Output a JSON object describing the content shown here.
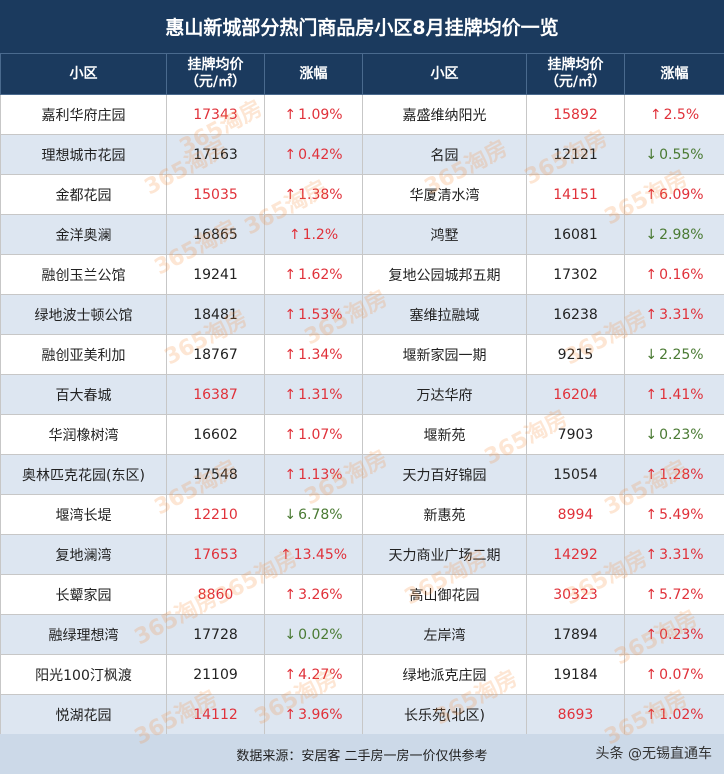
{
  "title": "惠山新城部分热门商品房小区8月挂牌均价一览",
  "headers": {
    "name": "小区",
    "price_line1": "挂牌均价",
    "price_line2": "（元/㎡）",
    "change": "涨幅"
  },
  "arrows": {
    "up": "↑",
    "down": "↓"
  },
  "left": [
    {
      "name": "嘉利华府庄园",
      "price": "17343",
      "price_up": true,
      "dir": "up",
      "pct": "1.09%"
    },
    {
      "name": "理想城市花园",
      "price": "17163",
      "price_up": false,
      "dir": "up",
      "pct": "0.42%"
    },
    {
      "name": "金都花园",
      "price": "15035",
      "price_up": true,
      "dir": "up",
      "pct": "1.38%"
    },
    {
      "name": "金洋奥澜",
      "price": "16865",
      "price_up": false,
      "dir": "up",
      "pct": "1.2%"
    },
    {
      "name": "融创玉兰公馆",
      "price": "19241",
      "price_up": false,
      "dir": "up",
      "pct": "1.62%"
    },
    {
      "name": "绿地波士顿公馆",
      "price": "18481",
      "price_up": false,
      "dir": "up",
      "pct": "1.53%"
    },
    {
      "name": "融创亚美利加",
      "price": "18767",
      "price_up": false,
      "dir": "up",
      "pct": "1.34%"
    },
    {
      "name": "百大春城",
      "price": "16387",
      "price_up": true,
      "dir": "up",
      "pct": "1.31%"
    },
    {
      "name": "华润橡树湾",
      "price": "16602",
      "price_up": false,
      "dir": "up",
      "pct": "1.07%"
    },
    {
      "name": "奥林匹克花园(东区)",
      "price": "17548",
      "price_up": false,
      "dir": "up",
      "pct": "1.13%"
    },
    {
      "name": "堰湾长堤",
      "price": "12210",
      "price_up": true,
      "dir": "down",
      "pct": "6.78%"
    },
    {
      "name": "复地澜湾",
      "price": "17653",
      "price_up": true,
      "dir": "up",
      "pct": "13.45%"
    },
    {
      "name": "长颦家园",
      "price": "8860",
      "price_up": true,
      "dir": "up",
      "pct": "3.26%"
    },
    {
      "name": "融绿理想湾",
      "price": "17728",
      "price_up": false,
      "dir": "down",
      "pct": "0.02%"
    },
    {
      "name": "阳光100汀枫渡",
      "price": "21109",
      "price_up": false,
      "dir": "up",
      "pct": "4.27%"
    },
    {
      "name": "悦湖花园",
      "price": "14112",
      "price_up": true,
      "dir": "up",
      "pct": "3.96%"
    }
  ],
  "right": [
    {
      "name": "嘉盛维纳阳光",
      "price": "15892",
      "price_up": true,
      "dir": "up",
      "pct": "2.5%"
    },
    {
      "name": "名园",
      "price": "12121",
      "price_up": false,
      "dir": "down",
      "pct": "0.55%"
    },
    {
      "name": "华厦清水湾",
      "price": "14151",
      "price_up": true,
      "dir": "up",
      "pct": "6.09%"
    },
    {
      "name": "鸿墅",
      "price": "16081",
      "price_up": false,
      "dir": "down",
      "pct": "2.98%"
    },
    {
      "name": "复地公园城邦五期",
      "price": "17302",
      "price_up": false,
      "dir": "up",
      "pct": "0.16%"
    },
    {
      "name": "塞维拉融域",
      "price": "16238",
      "price_up": false,
      "dir": "up",
      "pct": "3.31%"
    },
    {
      "name": "堰新家园一期",
      "price": "9215",
      "price_up": false,
      "dir": "down",
      "pct": "2.25%"
    },
    {
      "name": "万达华府",
      "price": "16204",
      "price_up": true,
      "dir": "up",
      "pct": "1.41%"
    },
    {
      "name": "堰新苑",
      "price": "7903",
      "price_up": false,
      "dir": "down",
      "pct": "0.23%"
    },
    {
      "name": "天力百好锦园",
      "price": "15054",
      "price_up": false,
      "dir": "up",
      "pct": "1.28%"
    },
    {
      "name": "新惠苑",
      "price": "8994",
      "price_up": true,
      "dir": "up",
      "pct": "5.49%"
    },
    {
      "name": "天力商业广场二期",
      "price": "14292",
      "price_up": true,
      "dir": "up",
      "pct": "3.31%"
    },
    {
      "name": "高山御花园",
      "price": "30323",
      "price_up": true,
      "dir": "up",
      "pct": "5.72%"
    },
    {
      "name": "左岸湾",
      "price": "17894",
      "price_up": false,
      "dir": "up",
      "pct": "0.23%"
    },
    {
      "name": "绿地派克庄园",
      "price": "19184",
      "price_up": false,
      "dir": "up",
      "pct": "0.07%"
    },
    {
      "name": "长乐苑(北区)",
      "price": "8693",
      "price_up": true,
      "dir": "up",
      "pct": "1.02%"
    }
  ],
  "footer": {
    "source": "数据来源：安居客 二手房一房一价仅供参考",
    "credit": "头条 @无锡直通车"
  },
  "watermark": "365淘房",
  "colors": {
    "header_bg": "#1b3a5e",
    "row_alt_bg": "#dde6f1",
    "up_red": "#e0313a",
    "down_green": "#4a7a33",
    "footer_bg": "#ccd9e8"
  }
}
